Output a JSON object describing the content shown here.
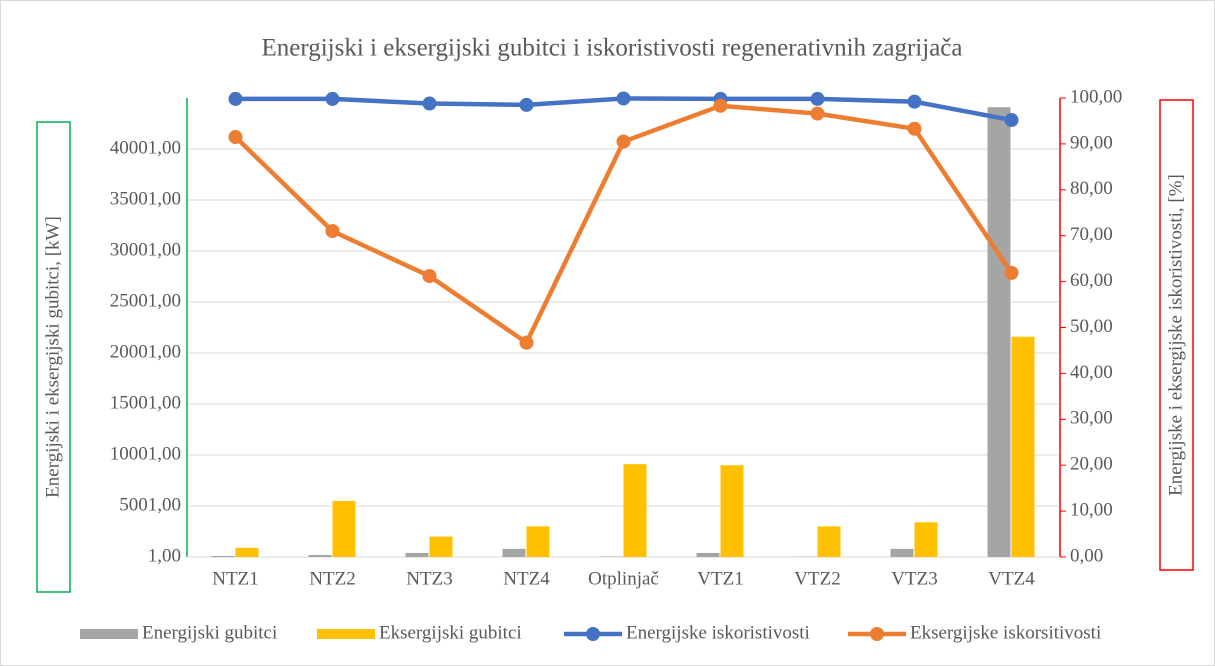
{
  "chart_data": {
    "type": "bar+line",
    "title": "Energijski i eksergijski gubitci i iskoristivosti regenerativnih zagrijača",
    "y_label": "Energijski i eksergijski gubitci, [kW]",
    "y2_label": "Energijske i eksergijske iskoristivosti, [%]",
    "categories": [
      "NTZ1",
      "NTZ2",
      "NTZ3",
      "NTZ4",
      "Otplinjač",
      "VTZ1",
      "VTZ2",
      "VTZ3",
      "VTZ4"
    ],
    "ylim": [
      1,
      45001
    ],
    "yticks": [
      {
        "value": 1,
        "label": "1,00"
      },
      {
        "value": 5001,
        "label": "5001,00"
      },
      {
        "value": 10001,
        "label": "10001,00"
      },
      {
        "value": 15001,
        "label": "15001,00"
      },
      {
        "value": 20001,
        "label": "20001,00"
      },
      {
        "value": 25001,
        "label": "25001,00"
      },
      {
        "value": 30001,
        "label": "30001,00"
      },
      {
        "value": 35001,
        "label": "35001,00"
      },
      {
        "value": 40001,
        "label": "40001,00"
      }
    ],
    "y2lim": [
      0,
      100
    ],
    "y2ticks": [
      {
        "value": 0,
        "label": "0,00"
      },
      {
        "value": 10,
        "label": "10,00"
      },
      {
        "value": 20,
        "label": "20,00"
      },
      {
        "value": 30,
        "label": "30,00"
      },
      {
        "value": 40,
        "label": "40,00"
      },
      {
        "value": 50,
        "label": "50,00"
      },
      {
        "value": 60,
        "label": "60,00"
      },
      {
        "value": 70,
        "label": "70,00"
      },
      {
        "value": 80,
        "label": "80,00"
      },
      {
        "value": 90,
        "label": "90,00"
      },
      {
        "value": 100,
        "label": "100,00"
      }
    ],
    "grid": true,
    "legend": "bottom",
    "series": [
      {
        "name": "Energijski gubitci",
        "type": "bar",
        "color": "#a5a5a5",
        "values": [
          100,
          200,
          400,
          800,
          50,
          400,
          30,
          800,
          44100
        ]
      },
      {
        "name": "Eksergijski gubitci",
        "type": "bar",
        "color": "#ffc000",
        "values": [
          900,
          5500,
          2000,
          3000,
          9100,
          9000,
          3000,
          3400,
          21600
        ]
      },
      {
        "name": "Energijske iskoristivosti",
        "type": "line",
        "axis": "y2",
        "color": "#4472c4",
        "values": [
          99.8,
          99.8,
          98.8,
          98.5,
          99.9,
          99.8,
          99.8,
          99.2,
          95.2
        ]
      },
      {
        "name": "Eksergijske iskorsitivosti",
        "type": "line",
        "axis": "y2",
        "color": "#ed7d31",
        "values": [
          91.5,
          71.0,
          61.2,
          46.7,
          90.5,
          98.3,
          96.6,
          93.3,
          61.9
        ]
      }
    ]
  }
}
